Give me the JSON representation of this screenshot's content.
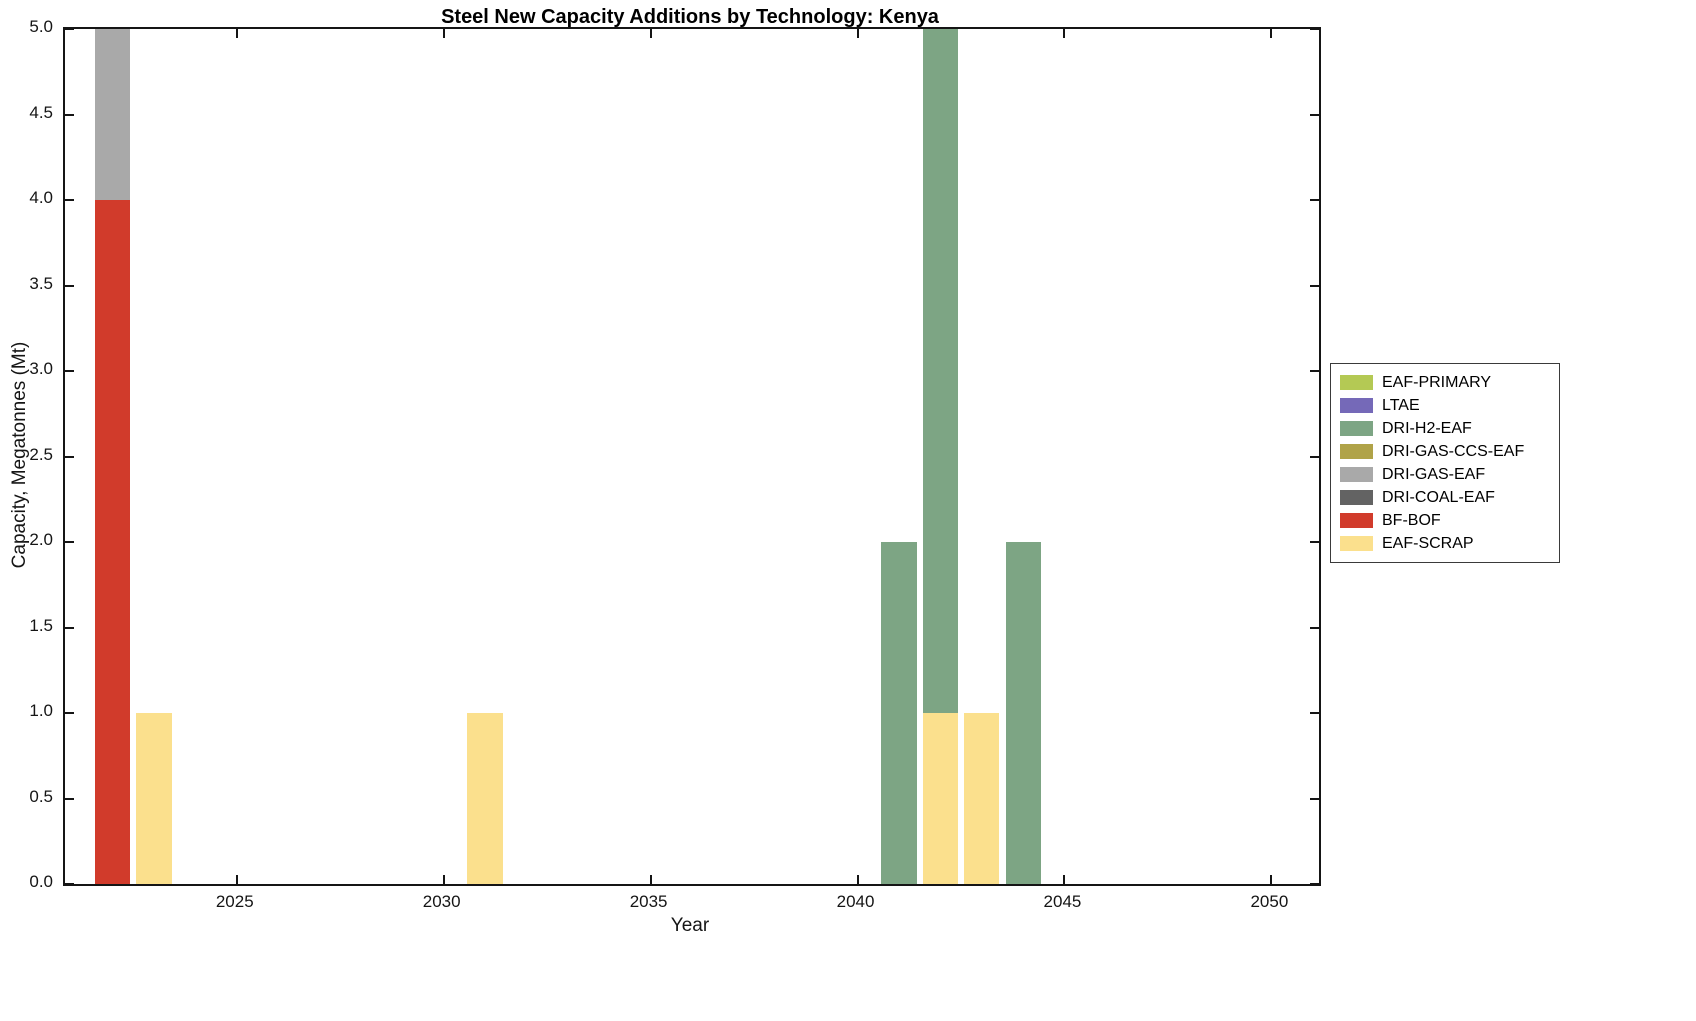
{
  "chart_data": {
    "type": "bar",
    "stacked": true,
    "title": "Steel New Capacity Additions by Technology: Kenya",
    "xlabel": "Year",
    "ylabel": "Capacity, Megatonnes (Mt)",
    "xlim": [
      2020.85,
      2051.15
    ],
    "ylim": [
      0,
      5
    ],
    "xticks": [
      2025,
      2030,
      2035,
      2040,
      2045,
      2050
    ],
    "yticks": [
      0,
      0.5,
      1,
      1.5,
      2,
      2.5,
      3,
      3.5,
      4,
      4.5,
      5
    ],
    "grid": false,
    "bar_width_years": 0.85,
    "legend_position": "right-outside",
    "technologies": [
      {
        "name": "EAF-PRIMARY",
        "color": "#b4c954"
      },
      {
        "name": "LTAE",
        "color": "#7569b8"
      },
      {
        "name": "DRI-H2-EAF",
        "color": "#7da584"
      },
      {
        "name": "DRI-GAS-CCS-EAF",
        "color": "#b0a348"
      },
      {
        "name": "DRI-GAS-EAF",
        "color": "#a9a9a9"
      },
      {
        "name": "DRI-COAL-EAF",
        "color": "#636363"
      },
      {
        "name": "BF-BOF",
        "color": "#d13b2b"
      },
      {
        "name": "EAF-SCRAP",
        "color": "#fbe08d"
      }
    ],
    "bars": [
      {
        "year": 2022,
        "segments": [
          {
            "tech": "BF-BOF",
            "value": 4.0
          },
          {
            "tech": "DRI-GAS-EAF",
            "value": 1.0
          }
        ]
      },
      {
        "year": 2023,
        "segments": [
          {
            "tech": "EAF-SCRAP",
            "value": 1.0
          }
        ]
      },
      {
        "year": 2031,
        "segments": [
          {
            "tech": "EAF-SCRAP",
            "value": 1.0
          }
        ]
      },
      {
        "year": 2041,
        "segments": [
          {
            "tech": "DRI-H2-EAF",
            "value": 2.0
          }
        ]
      },
      {
        "year": 2042,
        "segments": [
          {
            "tech": "EAF-SCRAP",
            "value": 1.0
          },
          {
            "tech": "DRI-H2-EAF",
            "value": 4.0
          }
        ]
      },
      {
        "year": 2043,
        "segments": [
          {
            "tech": "EAF-SCRAP",
            "value": 1.0
          }
        ]
      },
      {
        "year": 2044,
        "segments": [
          {
            "tech": "DRI-H2-EAF",
            "value": 2.0
          }
        ]
      }
    ]
  }
}
